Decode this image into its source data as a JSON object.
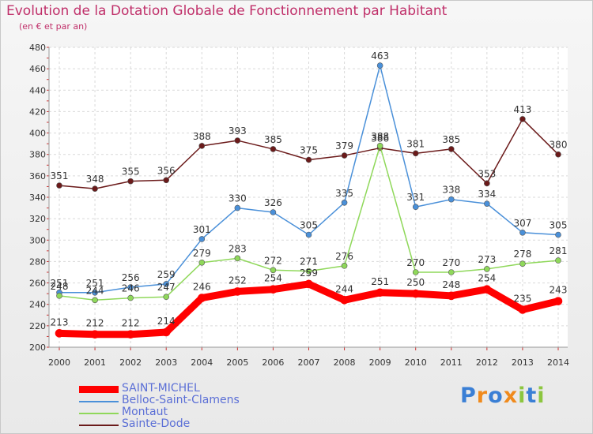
{
  "chart_data": {
    "type": "line",
    "title": "Evolution de la Dotation Globale de Fonctionnement par Habitant",
    "subtitle": "(en € et par an)",
    "xlabel": "",
    "ylabel": "",
    "ylim": [
      200,
      480
    ],
    "yticks": [
      200,
      220,
      240,
      260,
      280,
      300,
      320,
      340,
      360,
      380,
      400,
      420,
      440,
      460,
      480
    ],
    "categories": [
      "2000",
      "2001",
      "2002",
      "2003",
      "2004",
      "2005",
      "2006",
      "2007",
      "2008",
      "2009",
      "2010",
      "2011",
      "2012",
      "2013",
      "2014"
    ],
    "legend_position": "bottom-left",
    "series": [
      {
        "name": "Sainte-Dode",
        "color": "#6b1a1a",
        "values": [
          351,
          348,
          355,
          356,
          388,
          393,
          385,
          375,
          379,
          386,
          381,
          385,
          353,
          413,
          380
        ]
      },
      {
        "name": "Belloc-Saint-Clamens",
        "color": "#4a90d9",
        "values": [
          251,
          251,
          256,
          259,
          301,
          330,
          326,
          305,
          335,
          463,
          331,
          338,
          334,
          307,
          305
        ]
      },
      {
        "name": "Montaut",
        "color": "#8fd85a",
        "values": [
          248,
          244,
          246,
          247,
          279,
          283,
          272,
          271,
          276,
          388,
          270,
          270,
          273,
          278,
          281
        ]
      },
      {
        "name": "SAINT-MICHEL",
        "color": "#ff0000",
        "values": [
          213,
          212,
          212,
          214,
          246,
          252,
          254,
          259,
          244,
          251,
          250,
          248,
          254,
          235,
          243
        ]
      }
    ],
    "legend_order": [
      "SAINT-MICHEL",
      "Belloc-Saint-Clamens",
      "Montaut",
      "Sainte-Dode"
    ]
  },
  "logo": {
    "text": "Proxiti"
  }
}
